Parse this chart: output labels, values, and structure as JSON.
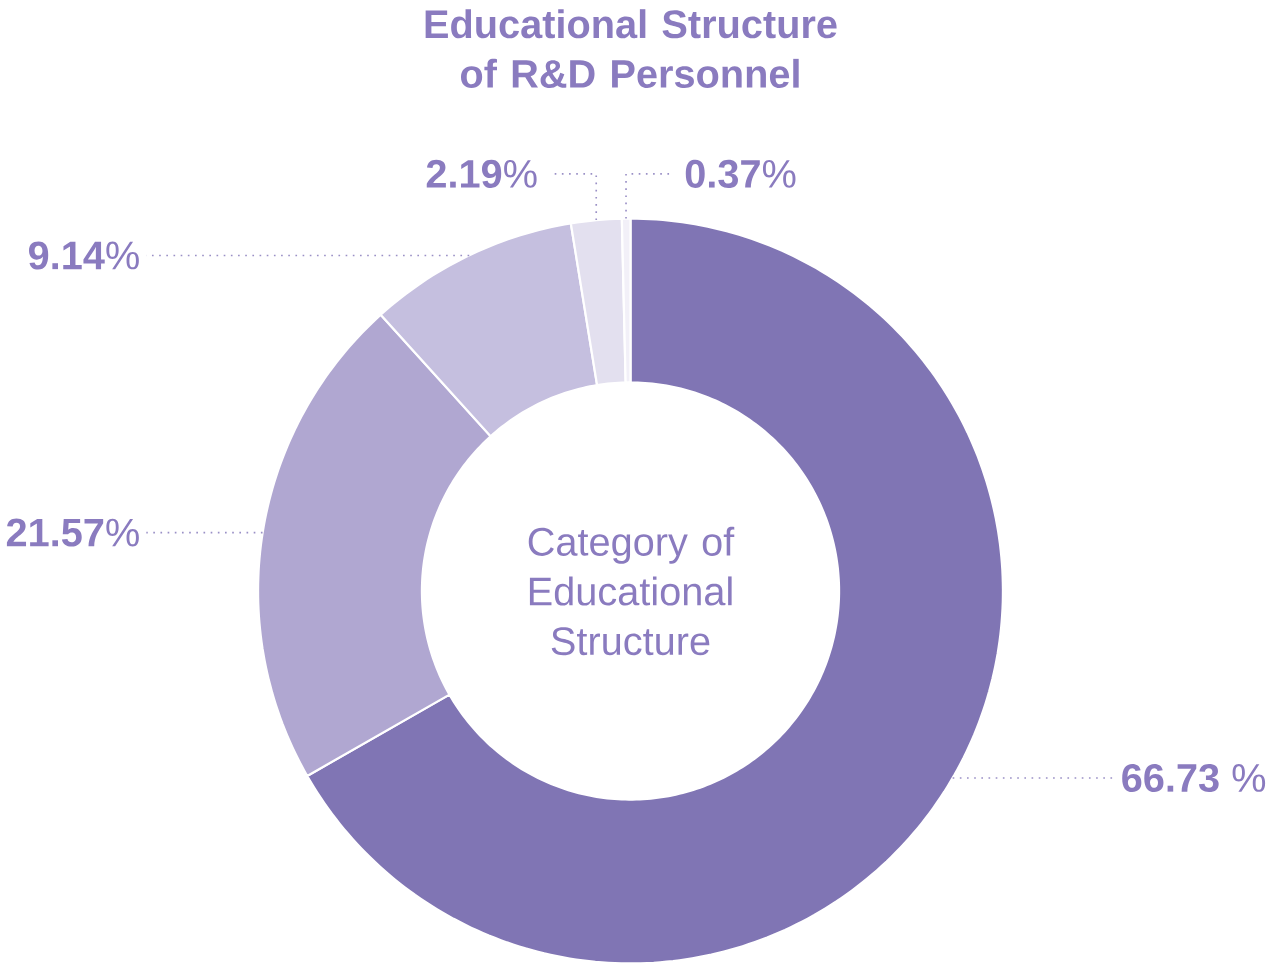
{
  "chart_data": {
    "type": "donut",
    "title": "Educational Structure of R&D Personnel",
    "categories": [
      null,
      null,
      null,
      null,
      null
    ],
    "values": [
      66.73,
      21.57,
      9.14,
      2.19,
      0.37
    ],
    "colors": [
      "#8075b4",
      "#b0a7d1",
      "#c5bfdf",
      "#e3e0ef",
      "#f2f0f8"
    ],
    "value_labels": [
      "**66.73** %",
      "**21.57**%",
      "**9.14**%",
      "**2.19**%",
      "**0.37**%"
    ],
    "annotations": [
      "Category of Educational Structure"
    ]
  }
}
